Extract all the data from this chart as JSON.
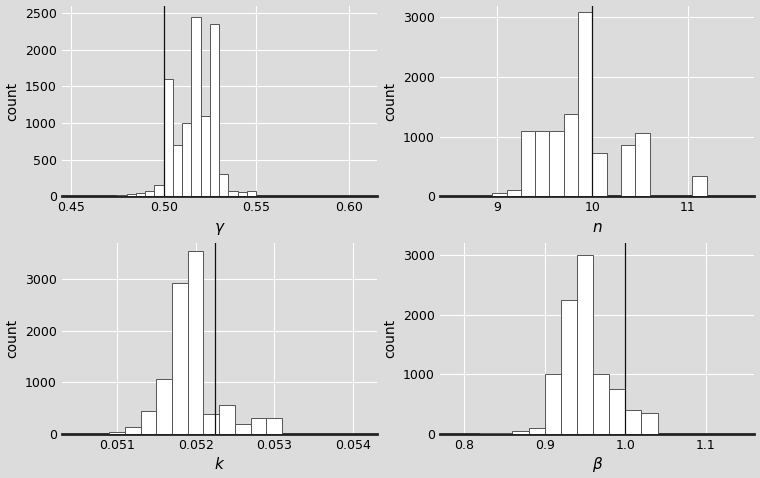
{
  "gamma": {
    "bin_edges": [
      0.455,
      0.46,
      0.465,
      0.47,
      0.475,
      0.48,
      0.485,
      0.49,
      0.495,
      0.5,
      0.505,
      0.51,
      0.515,
      0.52,
      0.525,
      0.53,
      0.535,
      0.54,
      0.545,
      0.55,
      0.555,
      0.56,
      0.565,
      0.57,
      0.575,
      0.58,
      0.585,
      0.59,
      0.595,
      0.6,
      0.605
    ],
    "counts": [
      2,
      3,
      5,
      10,
      20,
      30,
      50,
      80,
      150,
      1600,
      700,
      1000,
      2450,
      1100,
      2350,
      300,
      70,
      60,
      80,
      0,
      0,
      0,
      0,
      0,
      0,
      0,
      0,
      0,
      0,
      0
    ],
    "vline": 0.5,
    "xlabel": "γ",
    "ylabel": "count",
    "xlim": [
      0.445,
      0.615
    ],
    "ylim": [
      0,
      2600
    ],
    "yticks": [
      0,
      500,
      1000,
      1500,
      2000,
      2500
    ],
    "xticks": [
      0.45,
      0.5,
      0.55,
      0.6
    ]
  },
  "n": {
    "bin_edges": [
      8.5,
      8.65,
      8.8,
      8.95,
      9.1,
      9.25,
      9.4,
      9.55,
      9.7,
      9.85,
      10.0,
      10.15,
      10.3,
      10.45,
      10.6,
      10.75,
      10.9,
      11.05,
      11.2,
      11.35
    ],
    "counts": [
      3,
      5,
      10,
      60,
      110,
      1100,
      1100,
      1100,
      1380,
      3100,
      720,
      0,
      860,
      1060,
      0,
      0,
      0,
      350,
      0
    ],
    "vline": 10.0,
    "xlabel": "n",
    "ylabel": "count",
    "xlim": [
      8.4,
      11.7
    ],
    "ylim": [
      0,
      3200
    ],
    "yticks": [
      0,
      1000,
      2000,
      3000
    ],
    "xticks": [
      9,
      10,
      11
    ]
  },
  "k": {
    "bin_edges": [
      0.0503,
      0.0505,
      0.0507,
      0.0509,
      0.0511,
      0.0513,
      0.0515,
      0.0517,
      0.0519,
      0.0521,
      0.0523,
      0.0525,
      0.0527,
      0.0529,
      0.0531,
      0.0533,
      0.0535,
      0.0537,
      0.0539,
      0.0541
    ],
    "counts": [
      5,
      5,
      10,
      30,
      130,
      450,
      1060,
      2920,
      3550,
      380,
      560,
      200,
      310,
      310,
      0,
      0,
      0,
      0,
      0
    ],
    "vline": 0.05225,
    "xlabel": "k",
    "ylabel": "count",
    "xlim": [
      0.0503,
      0.0543
    ],
    "ylim": [
      0,
      3700
    ],
    "yticks": [
      0,
      1000,
      2000,
      3000
    ],
    "xticks": [
      0.051,
      0.052,
      0.053,
      0.054
    ]
  },
  "beta": {
    "bin_edges": [
      0.78,
      0.8,
      0.82,
      0.84,
      0.86,
      0.88,
      0.9,
      0.92,
      0.94,
      0.96,
      0.98,
      1.0,
      1.02,
      1.04,
      1.06,
      1.08,
      1.1,
      1.12
    ],
    "counts": [
      5,
      5,
      10,
      20,
      50,
      100,
      1000,
      2250,
      3000,
      1000,
      750,
      400,
      350,
      5,
      5,
      0,
      0
    ],
    "vline": 1.0,
    "xlabel": "β",
    "ylabel": "count",
    "xlim": [
      0.77,
      1.16
    ],
    "ylim": [
      0,
      3200
    ],
    "yticks": [
      0,
      1000,
      2000,
      3000
    ],
    "xticks": [
      0.8,
      0.9,
      1.0,
      1.1
    ]
  },
  "bg_color": "#dcdcdc",
  "bar_facecolor": "#ffffff",
  "bar_edgecolor": "#555555",
  "grid_color": "#ffffff",
  "vline_color": "#111111"
}
